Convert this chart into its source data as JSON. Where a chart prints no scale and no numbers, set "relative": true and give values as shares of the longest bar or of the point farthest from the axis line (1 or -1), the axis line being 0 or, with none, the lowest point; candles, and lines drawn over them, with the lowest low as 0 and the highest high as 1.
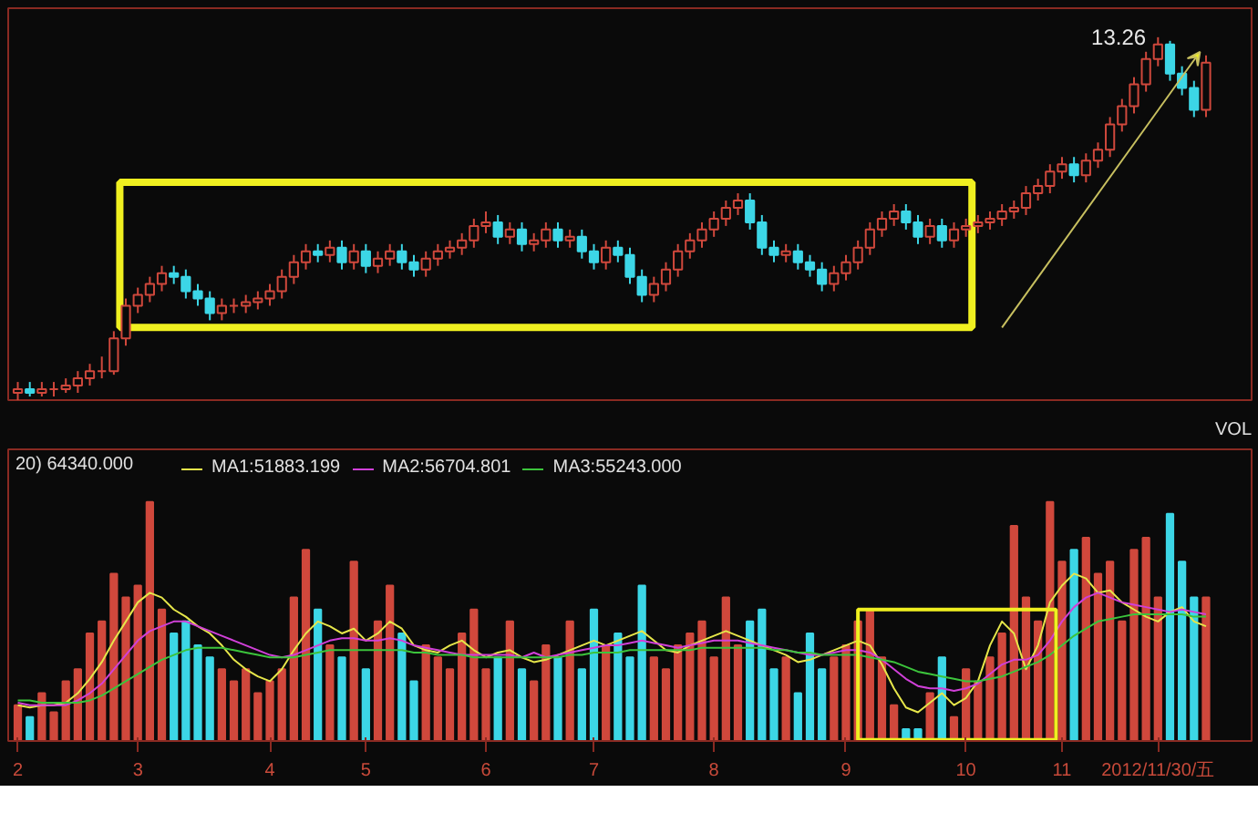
{
  "chart_data": [
    {
      "type": "candlestick",
      "relative": true,
      "tick_labels": false,
      "categories": [
        null,
        null,
        null,
        null,
        null,
        null,
        null,
        null,
        null,
        null,
        null,
        null,
        null,
        null,
        null,
        null,
        null,
        null,
        null,
        null,
        null,
        null,
        null,
        null,
        null,
        null,
        null,
        null,
        null,
        null,
        null,
        null,
        null,
        null,
        null,
        null,
        null,
        null,
        null,
        null,
        null,
        null,
        null,
        null,
        null,
        null,
        null,
        null,
        null,
        null,
        null,
        null,
        null,
        null,
        null,
        null,
        null,
        null,
        null,
        null,
        null,
        null,
        null,
        null,
        null,
        null,
        null,
        null,
        null,
        null,
        null,
        null,
        null,
        null,
        null,
        null,
        null,
        null,
        null,
        null,
        null,
        null,
        null,
        null,
        null,
        null,
        null,
        null,
        null,
        null,
        null,
        null,
        null,
        null,
        null,
        null,
        null,
        null,
        null,
        null
      ],
      "ohlc": [
        [
          0.02,
          0.05,
          0.0,
          0.03
        ],
        [
          0.03,
          0.05,
          0.01,
          0.02
        ],
        [
          0.02,
          0.05,
          0.01,
          0.03
        ],
        [
          0.03,
          0.05,
          0.01,
          0.03
        ],
        [
          0.03,
          0.06,
          0.02,
          0.04
        ],
        [
          0.04,
          0.08,
          0.02,
          0.06
        ],
        [
          0.06,
          0.1,
          0.04,
          0.08
        ],
        [
          0.08,
          0.12,
          0.06,
          0.08
        ],
        [
          0.08,
          0.19,
          0.07,
          0.17
        ],
        [
          0.17,
          0.28,
          0.15,
          0.26
        ],
        [
          0.26,
          0.31,
          0.24,
          0.29
        ],
        [
          0.29,
          0.34,
          0.27,
          0.32
        ],
        [
          0.32,
          0.37,
          0.3,
          0.35
        ],
        [
          0.35,
          0.37,
          0.32,
          0.34
        ],
        [
          0.34,
          0.36,
          0.28,
          0.3
        ],
        [
          0.3,
          0.32,
          0.26,
          0.28
        ],
        [
          0.28,
          0.3,
          0.22,
          0.24
        ],
        [
          0.24,
          0.28,
          0.22,
          0.26
        ],
        [
          0.26,
          0.28,
          0.24,
          0.26
        ],
        [
          0.26,
          0.29,
          0.24,
          0.27
        ],
        [
          0.27,
          0.3,
          0.25,
          0.28
        ],
        [
          0.28,
          0.32,
          0.26,
          0.3
        ],
        [
          0.3,
          0.36,
          0.28,
          0.34
        ],
        [
          0.34,
          0.4,
          0.32,
          0.38
        ],
        [
          0.38,
          0.43,
          0.36,
          0.41
        ],
        [
          0.41,
          0.43,
          0.38,
          0.4
        ],
        [
          0.4,
          0.44,
          0.38,
          0.42
        ],
        [
          0.42,
          0.44,
          0.36,
          0.38
        ],
        [
          0.38,
          0.43,
          0.36,
          0.41
        ],
        [
          0.41,
          0.43,
          0.35,
          0.37
        ],
        [
          0.37,
          0.41,
          0.35,
          0.39
        ],
        [
          0.39,
          0.43,
          0.37,
          0.41
        ],
        [
          0.41,
          0.43,
          0.36,
          0.38
        ],
        [
          0.38,
          0.4,
          0.34,
          0.36
        ],
        [
          0.36,
          0.41,
          0.34,
          0.39
        ],
        [
          0.39,
          0.43,
          0.37,
          0.41
        ],
        [
          0.41,
          0.44,
          0.39,
          0.42
        ],
        [
          0.42,
          0.46,
          0.4,
          0.44
        ],
        [
          0.44,
          0.5,
          0.42,
          0.48
        ],
        [
          0.48,
          0.52,
          0.46,
          0.49
        ],
        [
          0.49,
          0.51,
          0.43,
          0.45
        ],
        [
          0.45,
          0.49,
          0.43,
          0.47
        ],
        [
          0.47,
          0.49,
          0.41,
          0.43
        ],
        [
          0.43,
          0.46,
          0.41,
          0.44
        ],
        [
          0.44,
          0.49,
          0.42,
          0.47
        ],
        [
          0.47,
          0.49,
          0.42,
          0.44
        ],
        [
          0.44,
          0.47,
          0.42,
          0.45
        ],
        [
          0.45,
          0.47,
          0.39,
          0.41
        ],
        [
          0.41,
          0.43,
          0.36,
          0.38
        ],
        [
          0.38,
          0.44,
          0.36,
          0.42
        ],
        [
          0.42,
          0.44,
          0.38,
          0.4
        ],
        [
          0.4,
          0.42,
          0.32,
          0.34
        ],
        [
          0.34,
          0.36,
          0.27,
          0.29
        ],
        [
          0.29,
          0.34,
          0.27,
          0.32
        ],
        [
          0.32,
          0.38,
          0.3,
          0.36
        ],
        [
          0.36,
          0.43,
          0.34,
          0.41
        ],
        [
          0.41,
          0.46,
          0.39,
          0.44
        ],
        [
          0.44,
          0.49,
          0.42,
          0.47
        ],
        [
          0.47,
          0.52,
          0.45,
          0.5
        ],
        [
          0.5,
          0.55,
          0.48,
          0.53
        ],
        [
          0.53,
          0.57,
          0.51,
          0.55
        ],
        [
          0.55,
          0.57,
          0.47,
          0.49
        ],
        [
          0.49,
          0.51,
          0.4,
          0.42
        ],
        [
          0.42,
          0.44,
          0.38,
          0.4
        ],
        [
          0.4,
          0.43,
          0.38,
          0.41
        ],
        [
          0.41,
          0.43,
          0.36,
          0.38
        ],
        [
          0.38,
          0.4,
          0.34,
          0.36
        ],
        [
          0.36,
          0.38,
          0.3,
          0.32
        ],
        [
          0.32,
          0.37,
          0.3,
          0.35
        ],
        [
          0.35,
          0.4,
          0.33,
          0.38
        ],
        [
          0.38,
          0.44,
          0.36,
          0.42
        ],
        [
          0.42,
          0.49,
          0.4,
          0.47
        ],
        [
          0.47,
          0.52,
          0.45,
          0.5
        ],
        [
          0.5,
          0.54,
          0.48,
          0.52
        ],
        [
          0.52,
          0.54,
          0.47,
          0.49
        ],
        [
          0.49,
          0.51,
          0.43,
          0.45
        ],
        [
          0.45,
          0.5,
          0.43,
          0.48
        ],
        [
          0.48,
          0.5,
          0.42,
          0.44
        ],
        [
          0.44,
          0.49,
          0.42,
          0.47
        ],
        [
          0.47,
          0.5,
          0.45,
          0.48
        ],
        [
          0.48,
          0.51,
          0.46,
          0.49
        ],
        [
          0.49,
          0.52,
          0.47,
          0.5
        ],
        [
          0.5,
          0.54,
          0.48,
          0.52
        ],
        [
          0.52,
          0.55,
          0.5,
          0.53
        ],
        [
          0.53,
          0.59,
          0.51,
          0.57
        ],
        [
          0.57,
          0.61,
          0.55,
          0.59
        ],
        [
          0.59,
          0.65,
          0.57,
          0.63
        ],
        [
          0.63,
          0.67,
          0.61,
          0.65
        ],
        [
          0.65,
          0.67,
          0.6,
          0.62
        ],
        [
          0.62,
          0.68,
          0.6,
          0.66
        ],
        [
          0.66,
          0.71,
          0.64,
          0.69
        ],
        [
          0.69,
          0.78,
          0.67,
          0.76
        ],
        [
          0.76,
          0.83,
          0.74,
          0.81
        ],
        [
          0.81,
          0.89,
          0.79,
          0.87
        ],
        [
          0.87,
          0.96,
          0.85,
          0.94
        ],
        [
          0.94,
          1.0,
          0.92,
          0.98
        ],
        [
          0.98,
          0.99,
          0.88,
          0.9
        ],
        [
          0.9,
          0.92,
          0.84,
          0.86
        ],
        [
          0.86,
          0.88,
          0.78,
          0.8
        ],
        [
          0.8,
          0.95,
          0.78,
          0.93
        ]
      ],
      "colors": [
        "#d0483c",
        "#3cd6e6",
        "#d0483c",
        "#d0483c",
        "#d0483c",
        "#d0483c",
        "#d0483c",
        "#d0483c",
        "#d0483c",
        "#d0483c",
        "#d0483c",
        "#d0483c",
        "#d0483c",
        "#3cd6e6",
        "#3cd6e6",
        "#3cd6e6",
        "#3cd6e6",
        "#d0483c",
        "#d0483c",
        "#d0483c",
        "#d0483c",
        "#d0483c",
        "#d0483c",
        "#d0483c",
        "#d0483c",
        "#3cd6e6",
        "#d0483c",
        "#3cd6e6",
        "#d0483c",
        "#3cd6e6",
        "#d0483c",
        "#d0483c",
        "#3cd6e6",
        "#3cd6e6",
        "#d0483c",
        "#d0483c",
        "#d0483c",
        "#d0483c",
        "#d0483c",
        "#d0483c",
        "#3cd6e6",
        "#d0483c",
        "#3cd6e6",
        "#d0483c",
        "#d0483c",
        "#3cd6e6",
        "#d0483c",
        "#3cd6e6",
        "#3cd6e6",
        "#d0483c",
        "#3cd6e6",
        "#3cd6e6",
        "#3cd6e6",
        "#d0483c",
        "#d0483c",
        "#d0483c",
        "#d0483c",
        "#d0483c",
        "#d0483c",
        "#d0483c",
        "#d0483c",
        "#3cd6e6",
        "#3cd6e6",
        "#3cd6e6",
        "#d0483c",
        "#3cd6e6",
        "#3cd6e6",
        "#3cd6e6",
        "#d0483c",
        "#d0483c",
        "#d0483c",
        "#d0483c",
        "#d0483c",
        "#d0483c",
        "#3cd6e6",
        "#3cd6e6",
        "#d0483c",
        "#3cd6e6",
        "#d0483c",
        "#d0483c",
        "#d0483c",
        "#d0483c",
        "#d0483c",
        "#d0483c",
        "#d0483c",
        "#d0483c",
        "#d0483c",
        "#d0483c",
        "#3cd6e6",
        "#d0483c",
        "#d0483c",
        "#d0483c",
        "#d0483c",
        "#d0483c",
        "#d0483c",
        "#d0483c",
        "#3cd6e6",
        "#3cd6e6",
        "#3cd6e6",
        "#d0483c"
      ],
      "annotations": [
        "13.26"
      ]
    },
    {
      "type": "bar",
      "relative": true,
      "title": "VOL",
      "legend": "top left",
      "categories": [
        "2",
        null,
        null,
        null,
        null,
        null,
        null,
        null,
        null,
        null,
        "3",
        null,
        null,
        null,
        null,
        null,
        null,
        null,
        null,
        null,
        null,
        "4",
        null,
        null,
        null,
        null,
        null,
        null,
        null,
        "5",
        null,
        null,
        null,
        null,
        null,
        null,
        null,
        null,
        null,
        "6",
        null,
        null,
        null,
        null,
        null,
        null,
        null,
        null,
        "7",
        null,
        null,
        null,
        null,
        null,
        null,
        null,
        null,
        null,
        "8",
        null,
        null,
        null,
        null,
        null,
        null,
        null,
        null,
        null,
        null,
        "9",
        null,
        null,
        null,
        null,
        null,
        null,
        null,
        null,
        null,
        "10",
        null,
        null,
        null,
        null,
        null,
        null,
        null,
        "11",
        null,
        null,
        null,
        null,
        null,
        null,
        null,
        null,
        null,
        null,
        null,
        null
      ],
      "values": [
        0.15,
        0.1,
        0.2,
        0.12,
        0.25,
        0.3,
        0.45,
        0.5,
        0.7,
        0.6,
        0.65,
        1.0,
        0.55,
        0.45,
        0.5,
        0.4,
        0.35,
        0.3,
        0.25,
        0.3,
        0.2,
        0.25,
        0.3,
        0.6,
        0.8,
        0.55,
        0.4,
        0.35,
        0.75,
        0.3,
        0.5,
        0.65,
        0.45,
        0.25,
        0.4,
        0.35,
        0.3,
        0.45,
        0.55,
        0.3,
        0.35,
        0.5,
        0.3,
        0.25,
        0.4,
        0.35,
        0.5,
        0.3,
        0.55,
        0.4,
        0.45,
        0.35,
        0.65,
        0.35,
        0.3,
        0.4,
        0.45,
        0.5,
        0.35,
        0.6,
        0.4,
        0.5,
        0.55,
        0.3,
        0.35,
        0.2,
        0.45,
        0.3,
        0.35,
        0.4,
        0.5,
        0.55,
        0.35,
        0.15,
        0.05,
        0.05,
        0.2,
        0.35,
        0.1,
        0.3,
        0.25,
        0.35,
        0.45,
        0.9,
        0.6,
        0.5,
        1.0,
        0.75,
        0.8,
        0.85,
        0.7,
        0.75,
        0.5,
        0.8,
        0.85,
        0.6,
        0.95,
        0.75,
        0.6,
        0.6
      ],
      "colors": [
        "#d0483c",
        "#3cd6e6",
        "#d0483c",
        "#d0483c",
        "#d0483c",
        "#d0483c",
        "#d0483c",
        "#d0483c",
        "#d0483c",
        "#d0483c",
        "#d0483c",
        "#d0483c",
        "#d0483c",
        "#3cd6e6",
        "#3cd6e6",
        "#3cd6e6",
        "#3cd6e6",
        "#d0483c",
        "#d0483c",
        "#d0483c",
        "#d0483c",
        "#d0483c",
        "#d0483c",
        "#d0483c",
        "#d0483c",
        "#3cd6e6",
        "#d0483c",
        "#3cd6e6",
        "#d0483c",
        "#3cd6e6",
        "#d0483c",
        "#d0483c",
        "#3cd6e6",
        "#3cd6e6",
        "#d0483c",
        "#d0483c",
        "#d0483c",
        "#d0483c",
        "#d0483c",
        "#d0483c",
        "#3cd6e6",
        "#d0483c",
        "#3cd6e6",
        "#d0483c",
        "#d0483c",
        "#3cd6e6",
        "#d0483c",
        "#3cd6e6",
        "#3cd6e6",
        "#d0483c",
        "#3cd6e6",
        "#3cd6e6",
        "#3cd6e6",
        "#d0483c",
        "#d0483c",
        "#d0483c",
        "#d0483c",
        "#d0483c",
        "#d0483c",
        "#d0483c",
        "#d0483c",
        "#3cd6e6",
        "#3cd6e6",
        "#3cd6e6",
        "#d0483c",
        "#3cd6e6",
        "#3cd6e6",
        "#3cd6e6",
        "#d0483c",
        "#d0483c",
        "#d0483c",
        "#d0483c",
        "#d0483c",
        "#d0483c",
        "#3cd6e6",
        "#3cd6e6",
        "#d0483c",
        "#3cd6e6",
        "#d0483c",
        "#d0483c",
        "#d0483c",
        "#d0483c",
        "#d0483c",
        "#d0483c",
        "#d0483c",
        "#d0483c",
        "#d0483c",
        "#d0483c",
        "#3cd6e6",
        "#d0483c",
        "#d0483c",
        "#d0483c",
        "#d0483c",
        "#d0483c",
        "#d0483c",
        "#d0483c",
        "#3cd6e6",
        "#3cd6e6",
        "#3cd6e6",
        "#d0483c"
      ],
      "series": [
        {
          "type": "line",
          "name": "MA1:51883.199",
          "color": "#e6e64a",
          "values": [
            0.15,
            0.14,
            0.15,
            0.15,
            0.16,
            0.2,
            0.26,
            0.33,
            0.42,
            0.5,
            0.58,
            0.62,
            0.6,
            0.55,
            0.52,
            0.48,
            0.45,
            0.4,
            0.34,
            0.3,
            0.27,
            0.25,
            0.3,
            0.38,
            0.45,
            0.5,
            0.48,
            0.45,
            0.47,
            0.42,
            0.45,
            0.5,
            0.47,
            0.4,
            0.38,
            0.37,
            0.4,
            0.42,
            0.38,
            0.35,
            0.37,
            0.38,
            0.35,
            0.33,
            0.34,
            0.36,
            0.38,
            0.4,
            0.42,
            0.4,
            0.42,
            0.44,
            0.46,
            0.42,
            0.38,
            0.37,
            0.4,
            0.42,
            0.44,
            0.46,
            0.44,
            0.42,
            0.4,
            0.38,
            0.36,
            0.33,
            0.34,
            0.36,
            0.38,
            0.4,
            0.42,
            0.4,
            0.32,
            0.22,
            0.14,
            0.12,
            0.16,
            0.2,
            0.15,
            0.18,
            0.25,
            0.4,
            0.5,
            0.45,
            0.3,
            0.4,
            0.58,
            0.65,
            0.7,
            0.68,
            0.62,
            0.63,
            0.58,
            0.55,
            0.52,
            0.5,
            0.54,
            0.56,
            0.5,
            0.48
          ]
        },
        {
          "type": "line",
          "name": "MA2:56704.801",
          "color": "#d040d8",
          "values": [
            0.16,
            0.15,
            0.15,
            0.15,
            0.15,
            0.17,
            0.2,
            0.24,
            0.3,
            0.36,
            0.42,
            0.46,
            0.48,
            0.5,
            0.5,
            0.48,
            0.46,
            0.44,
            0.42,
            0.4,
            0.38,
            0.36,
            0.35,
            0.36,
            0.38,
            0.4,
            0.42,
            0.43,
            0.43,
            0.42,
            0.42,
            0.43,
            0.42,
            0.4,
            0.39,
            0.38,
            0.37,
            0.36,
            0.36,
            0.36,
            0.36,
            0.36,
            0.35,
            0.37,
            0.35,
            0.36,
            0.37,
            0.38,
            0.39,
            0.4,
            0.4,
            0.41,
            0.42,
            0.41,
            0.4,
            0.39,
            0.4,
            0.41,
            0.42,
            0.42,
            0.42,
            0.41,
            0.4,
            0.39,
            0.38,
            0.37,
            0.36,
            0.36,
            0.37,
            0.38,
            0.38,
            0.37,
            0.34,
            0.3,
            0.26,
            0.23,
            0.22,
            0.22,
            0.21,
            0.22,
            0.24,
            0.28,
            0.32,
            0.34,
            0.34,
            0.36,
            0.42,
            0.5,
            0.56,
            0.6,
            0.62,
            0.6,
            0.58,
            0.57,
            0.56,
            0.55,
            0.54,
            0.55,
            0.54,
            0.53
          ]
        },
        {
          "type": "line",
          "name": "MA3:55243.000",
          "color": "#3cc43c",
          "values": [
            0.17,
            0.17,
            0.16,
            0.16,
            0.16,
            0.16,
            0.17,
            0.19,
            0.22,
            0.25,
            0.28,
            0.31,
            0.34,
            0.36,
            0.38,
            0.39,
            0.39,
            0.39,
            0.38,
            0.37,
            0.36,
            0.35,
            0.35,
            0.35,
            0.36,
            0.37,
            0.38,
            0.38,
            0.38,
            0.38,
            0.38,
            0.38,
            0.38,
            0.37,
            0.37,
            0.36,
            0.36,
            0.36,
            0.35,
            0.35,
            0.35,
            0.35,
            0.35,
            0.35,
            0.35,
            0.35,
            0.36,
            0.36,
            0.37,
            0.37,
            0.37,
            0.38,
            0.38,
            0.38,
            0.38,
            0.38,
            0.38,
            0.39,
            0.39,
            0.39,
            0.39,
            0.39,
            0.39,
            0.38,
            0.38,
            0.37,
            0.37,
            0.36,
            0.36,
            0.36,
            0.36,
            0.35,
            0.34,
            0.33,
            0.31,
            0.29,
            0.28,
            0.27,
            0.26,
            0.25,
            0.25,
            0.26,
            0.27,
            0.29,
            0.31,
            0.33,
            0.36,
            0.4,
            0.44,
            0.47,
            0.5,
            0.51,
            0.52,
            0.53,
            0.53,
            0.53,
            0.53,
            0.53,
            0.52,
            0.52
          ]
        }
      ],
      "annotations": [
        "20) 64340.000",
        "2012/11/30/五"
      ]
    }
  ]
}
